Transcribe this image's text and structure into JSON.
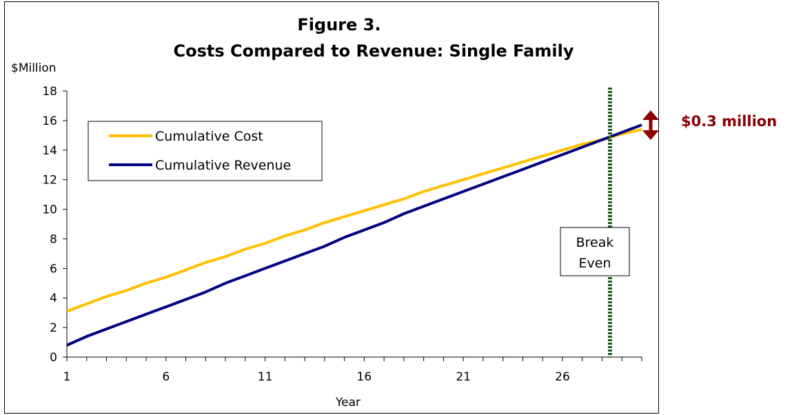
{
  "chart_data": {
    "type": "line",
    "title": "Figure 3.",
    "subtitle": "Costs Compared to Revenue: Single Family",
    "ylabel": "$Million",
    "xlabel": "Year",
    "ylim": [
      0,
      18
    ],
    "xlim": [
      1,
      30
    ],
    "yticks": [
      0,
      2,
      4,
      6,
      8,
      10,
      12,
      14,
      16,
      18
    ],
    "xtick_labels": [
      1,
      6,
      11,
      16,
      21,
      26
    ],
    "grid": false,
    "legend": "upper-left",
    "x": [
      1,
      2,
      3,
      4,
      5,
      6,
      7,
      8,
      9,
      10,
      11,
      12,
      13,
      14,
      15,
      16,
      17,
      18,
      19,
      20,
      21,
      22,
      23,
      24,
      25,
      26,
      27,
      28,
      29,
      30
    ],
    "series": [
      {
        "name": "Cumulative Cost",
        "color": "#ffc000",
        "values": [
          3.1,
          3.6,
          4.1,
          4.5,
          5.0,
          5.4,
          5.9,
          6.4,
          6.8,
          7.3,
          7.7,
          8.2,
          8.6,
          9.1,
          9.5,
          9.9,
          10.3,
          10.7,
          11.2,
          11.6,
          12.0,
          12.4,
          12.8,
          13.2,
          13.6,
          14.0,
          14.4,
          14.7,
          15.1,
          15.4
        ]
      },
      {
        "name": "Cumulative Revenue",
        "color": "#000080",
        "values": [
          0.8,
          1.4,
          1.9,
          2.4,
          2.9,
          3.4,
          3.9,
          4.4,
          5.0,
          5.5,
          6.0,
          6.5,
          7.0,
          7.5,
          8.1,
          8.6,
          9.1,
          9.7,
          10.2,
          10.7,
          11.2,
          11.7,
          12.2,
          12.7,
          13.2,
          13.7,
          14.2,
          14.7,
          15.2,
          15.7
        ]
      }
    ],
    "break_even": {
      "x": 28.4,
      "label_line1": "Break",
      "label_line2": "Even",
      "color": "#1e5a1e"
    },
    "difference_callout": {
      "text": "$0.3 million",
      "color": "#8b0000"
    }
  }
}
